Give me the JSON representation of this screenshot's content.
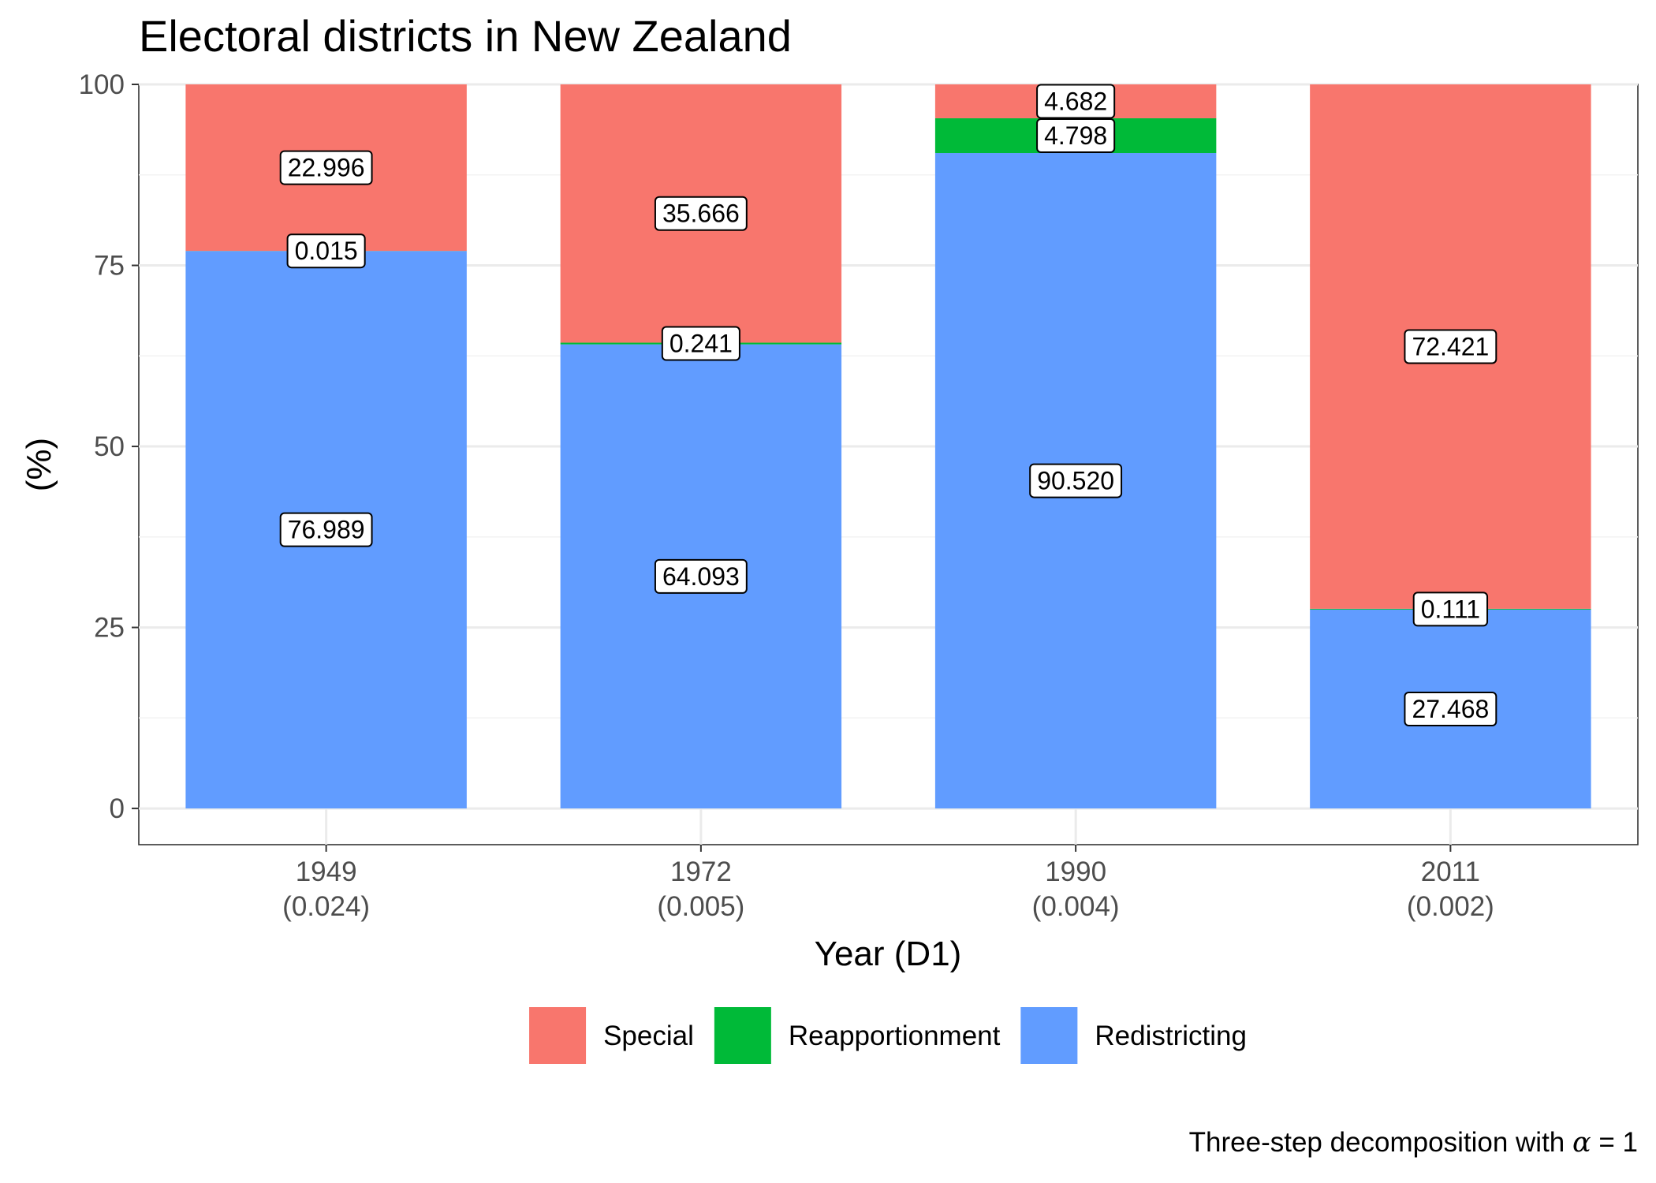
{
  "chart_data": {
    "type": "bar",
    "stacked": true,
    "title": "Electoral districts in New Zealand",
    "xlabel": "Year (D1)",
    "ylabel": "(%)",
    "ylim": [
      -5,
      100
    ],
    "yticks": [
      0,
      25,
      50,
      75,
      100
    ],
    "categories": [
      {
        "year": "1949",
        "sub": "(0.024)"
      },
      {
        "year": "1972",
        "sub": "(0.005)"
      },
      {
        "year": "1990",
        "sub": "(0.004)"
      },
      {
        "year": "2011",
        "sub": "(0.002)"
      }
    ],
    "series": [
      {
        "name": "Redistricting",
        "color": "#619CFF",
        "values": [
          76.989,
          64.093,
          90.52,
          27.468
        ],
        "labels": [
          "76.989",
          "64.093",
          "90.520",
          "27.468"
        ]
      },
      {
        "name": "Reapportionment",
        "color": "#00BA38",
        "values": [
          0.015,
          0.241,
          4.798,
          0.111
        ],
        "labels": [
          "0.015",
          "0.241",
          "4.798",
          "0.111"
        ]
      },
      {
        "name": "Special",
        "color": "#F8766D",
        "values": [
          22.996,
          35.666,
          4.682,
          72.421
        ],
        "labels": [
          "22.996",
          "35.666",
          "4.682",
          "72.421"
        ]
      }
    ],
    "legend": {
      "position": "bottom",
      "order": [
        "Special",
        "Reapportionment",
        "Redistricting"
      ]
    },
    "caption_prefix": "Three-step decomposition with ",
    "caption_symbol": "α",
    "caption_suffix": " = 1",
    "grid": true
  }
}
